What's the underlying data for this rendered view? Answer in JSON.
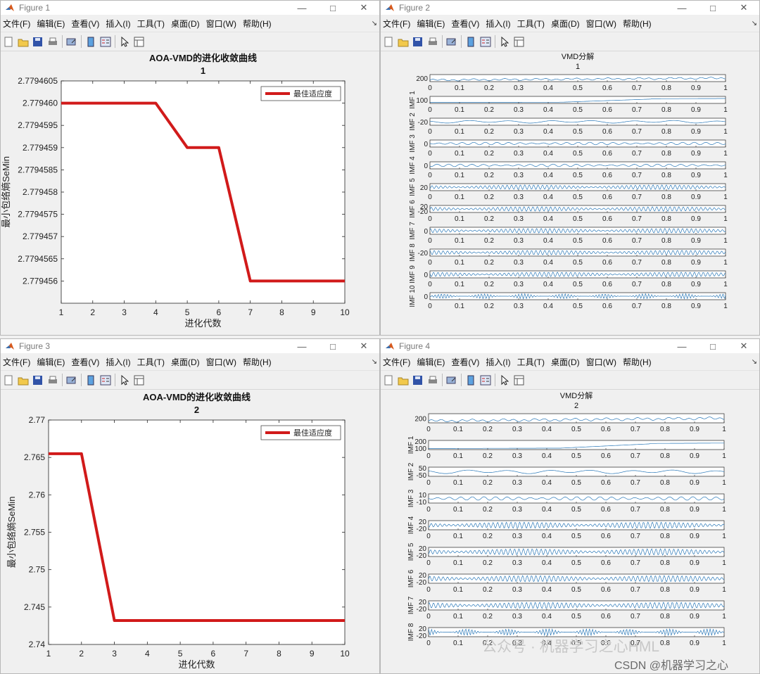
{
  "menu": [
    "文件(F)",
    "编辑(E)",
    "查看(V)",
    "插入(I)",
    "工具(T)",
    "桌面(D)",
    "窗口(W)",
    "帮助(H)"
  ],
  "toolbar_icons": [
    "new-figure-icon",
    "open-icon",
    "save-icon",
    "print-icon",
    "link-plot-icon",
    "colorbar-icon",
    "legend-icon",
    "pointer-icon",
    "property-inspector-icon"
  ],
  "figure1": {
    "window_title": "Figure 1",
    "title": "AOA-VMD的进化收敛曲线",
    "subtitle": "1",
    "legend": "最佳适应度",
    "xlabel": "进化代数",
    "ylabel": "最小包络熵SeMin",
    "line_color": "#d11a1a",
    "chart_data": {
      "type": "line",
      "x": [
        1,
        2,
        3,
        4,
        5,
        6,
        7,
        8,
        9,
        10
      ],
      "series": [
        {
          "name": "最佳适应度",
          "values": [
            2.77946,
            2.77946,
            2.77946,
            2.77946,
            2.779459,
            2.779459,
            2.779456,
            2.779456,
            2.779456,
            2.779456
          ]
        }
      ],
      "xlim": [
        1,
        10
      ],
      "ylim": [
        2.7794555,
        2.7794605
      ],
      "xticks": [
        "1",
        "2",
        "3",
        "4",
        "5",
        "6",
        "7",
        "8",
        "9",
        "10"
      ],
      "yticks": [
        "2.7794605",
        "2.779460",
        "2.7794595",
        "2.779459",
        "2.7794585",
        "2.779458",
        "2.7794575",
        "2.779457",
        "2.7794565",
        "2.779456"
      ],
      "ytick_values": [
        2.7794605,
        2.77946,
        2.7794595,
        2.779459,
        2.7794585,
        2.779458,
        2.7794575,
        2.779457,
        2.7794565,
        2.779456
      ]
    }
  },
  "figure3": {
    "window_title": "Figure 3",
    "title": "AOA-VMD的进化收敛曲线",
    "subtitle": "2",
    "legend": "最佳适应度",
    "xlabel": "进化代数",
    "ylabel": "最小包络熵SeMin",
    "line_color": "#d11a1a",
    "chart_data": {
      "type": "line",
      "x": [
        1,
        2,
        3,
        4,
        5,
        6,
        7,
        8,
        9,
        10
      ],
      "series": [
        {
          "name": "最佳适应度",
          "values": [
            2.7655,
            2.7655,
            2.7432,
            2.7432,
            2.7432,
            2.7432,
            2.7432,
            2.7432,
            2.7432,
            2.7432
          ]
        }
      ],
      "xlim": [
        1,
        10
      ],
      "ylim": [
        2.74,
        2.77
      ],
      "xticks": [
        "1",
        "2",
        "3",
        "4",
        "5",
        "6",
        "7",
        "8",
        "9",
        "10"
      ],
      "yticks": [
        "2.77",
        "2.765",
        "2.76",
        "2.755",
        "2.75",
        "2.745",
        "2.74"
      ],
      "ytick_values": [
        2.77,
        2.765,
        2.76,
        2.755,
        2.75,
        2.745,
        2.74
      ]
    }
  },
  "figure2": {
    "window_title": "Figure 2",
    "title": "VMD分解",
    "subtitle": "1",
    "line_color": "#2a78b8",
    "xticks": [
      "0",
      "0.1",
      "0.2",
      "0.3",
      "0.4",
      "0.5",
      "0.6",
      "0.7",
      "0.8",
      "0.9",
      "1"
    ],
    "chart_data": {
      "type": "line",
      "x_range": [
        0,
        1
      ],
      "panels": [
        {
          "name": "",
          "ytick_label": "200",
          "kind": "signal"
        },
        {
          "name": "IMF 1",
          "ytick_label": "100",
          "kind": "trend"
        },
        {
          "name": "IMF 2",
          "ytick_label": "-20",
          "kind": "osc-low"
        },
        {
          "name": "IMF 3",
          "ytick_label": "0",
          "kind": "osc-mid"
        },
        {
          "name": "IMF 4",
          "ytick_label": "0",
          "kind": "osc-mid"
        },
        {
          "name": "IMF 5",
          "ytick_label": "20",
          "kind": "osc-high"
        },
        {
          "name": "IMF 6",
          "ytick_label": "20 -20",
          "kind": "osc-high"
        },
        {
          "name": "IMF 7",
          "ytick_label": "0",
          "kind": "osc-high"
        },
        {
          "name": "IMF 8",
          "ytick_label": "-20",
          "kind": "osc-high"
        },
        {
          "name": "IMF 9",
          "ytick_label": "0",
          "kind": "osc-high"
        },
        {
          "name": "IMF 10",
          "ytick_label": "0",
          "kind": "burst"
        }
      ]
    }
  },
  "figure4": {
    "window_title": "Figure 4",
    "title": "VMD分解",
    "subtitle": "2",
    "line_color": "#2a78b8",
    "xticks": [
      "0",
      "0.1",
      "0.2",
      "0.3",
      "0.4",
      "0.5",
      "0.6",
      "0.7",
      "0.8",
      "0.9",
      "1"
    ],
    "chart_data": {
      "type": "line",
      "x_range": [
        0,
        1
      ],
      "panels": [
        {
          "name": "",
          "ytick_label": "200",
          "kind": "signal"
        },
        {
          "name": "IMF 1",
          "ytick_label": "200 100",
          "kind": "trend"
        },
        {
          "name": "IMF 2",
          "ytick_label": "50 -50",
          "kind": "osc-low"
        },
        {
          "name": "IMF 3",
          "ytick_label": "10 -10",
          "kind": "osc-mid"
        },
        {
          "name": "IMF 4",
          "ytick_label": "20 -20",
          "kind": "osc-high"
        },
        {
          "name": "IMF 5",
          "ytick_label": "20 -20",
          "kind": "osc-high"
        },
        {
          "name": "IMF 6",
          "ytick_label": "20 -20",
          "kind": "osc-high"
        },
        {
          "name": "IMF 7",
          "ytick_label": "20 -20",
          "kind": "osc-high"
        },
        {
          "name": "IMF 8",
          "ytick_label": "20 -20",
          "kind": "burst"
        }
      ]
    }
  },
  "watermark": {
    "line1": "公众号 · 机器学习之心HML",
    "line2": "CSDN @机器学习之心"
  }
}
